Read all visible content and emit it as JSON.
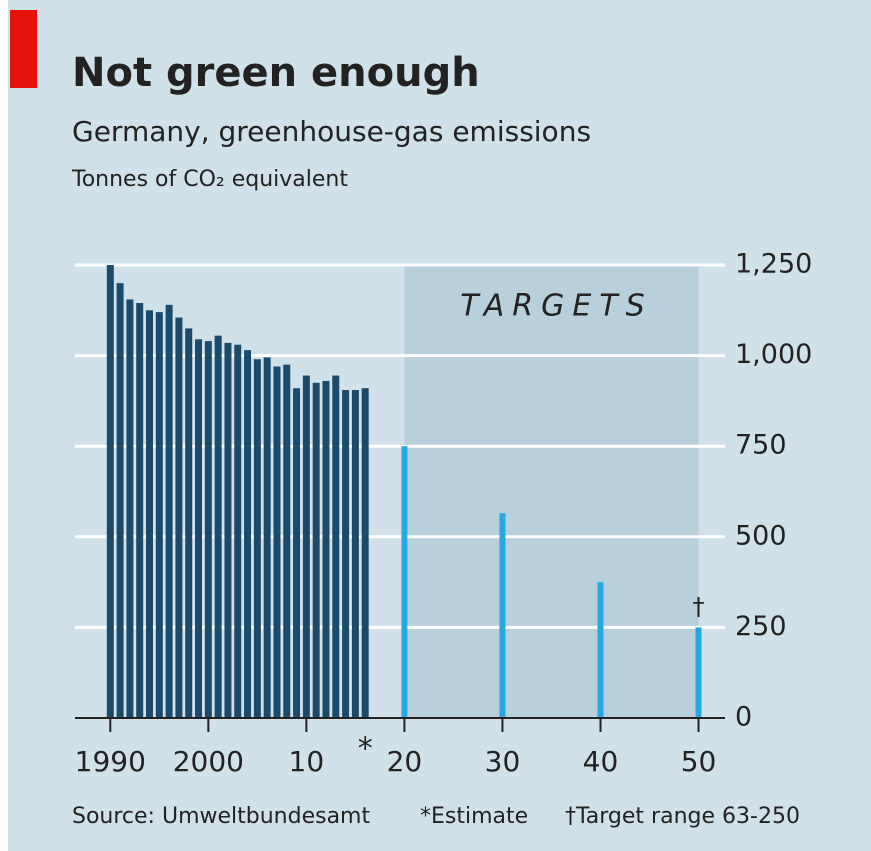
{
  "chart_data": {
    "type": "bar",
    "title": "Not green enough",
    "subtitle": "Germany, greenhouse-gas emissions",
    "unit_label": "Tonnes of CO₂ equivalent",
    "shaded_label": "TARGETS",
    "estimate_marker": "*",
    "dagger_marker": "†",
    "source": "Source: Umweltbundesamt",
    "notes": [
      "*Estimate",
      "†Target range 63-250"
    ],
    "series": [
      {
        "name": "Emissions",
        "color": "#1b4a6b",
        "x": [
          1990,
          1991,
          1992,
          1993,
          1994,
          1995,
          1996,
          1997,
          1998,
          1999,
          2000,
          2001,
          2002,
          2003,
          2004,
          2005,
          2006,
          2007,
          2008,
          2009,
          2010,
          2011,
          2012,
          2013,
          2014,
          2015,
          2016
        ],
        "values": [
          1250,
          1200,
          1155,
          1145,
          1125,
          1120,
          1140,
          1105,
          1075,
          1045,
          1040,
          1055,
          1035,
          1030,
          1015,
          990,
          995,
          970,
          975,
          910,
          945,
          925,
          930,
          945,
          905,
          905,
          910
        ]
      },
      {
        "name": "Targets",
        "color": "#29a8e0",
        "x": [
          2020,
          2030,
          2040,
          2050
        ],
        "values": [
          750,
          565,
          375,
          250
        ]
      }
    ],
    "shaded_range": [
      2020,
      2050
    ],
    "xlim": [
      1986.4,
      2052.7
    ],
    "xticks": [
      1990,
      2000,
      {
        "value": 2010,
        "label": "10"
      },
      {
        "value": 2020,
        "label": "20"
      },
      {
        "value": 2030,
        "label": "30"
      },
      {
        "value": 2040,
        "label": "40"
      },
      {
        "value": 2050,
        "label": "50"
      }
    ],
    "estimate_x": 2016,
    "ylim": [
      0,
      1250
    ],
    "yticks": [
      0,
      250,
      500,
      750,
      {
        "value": 1000,
        "label": "1,000"
      },
      {
        "value": 1250,
        "label": "1,250"
      }
    ],
    "grid": true
  }
}
